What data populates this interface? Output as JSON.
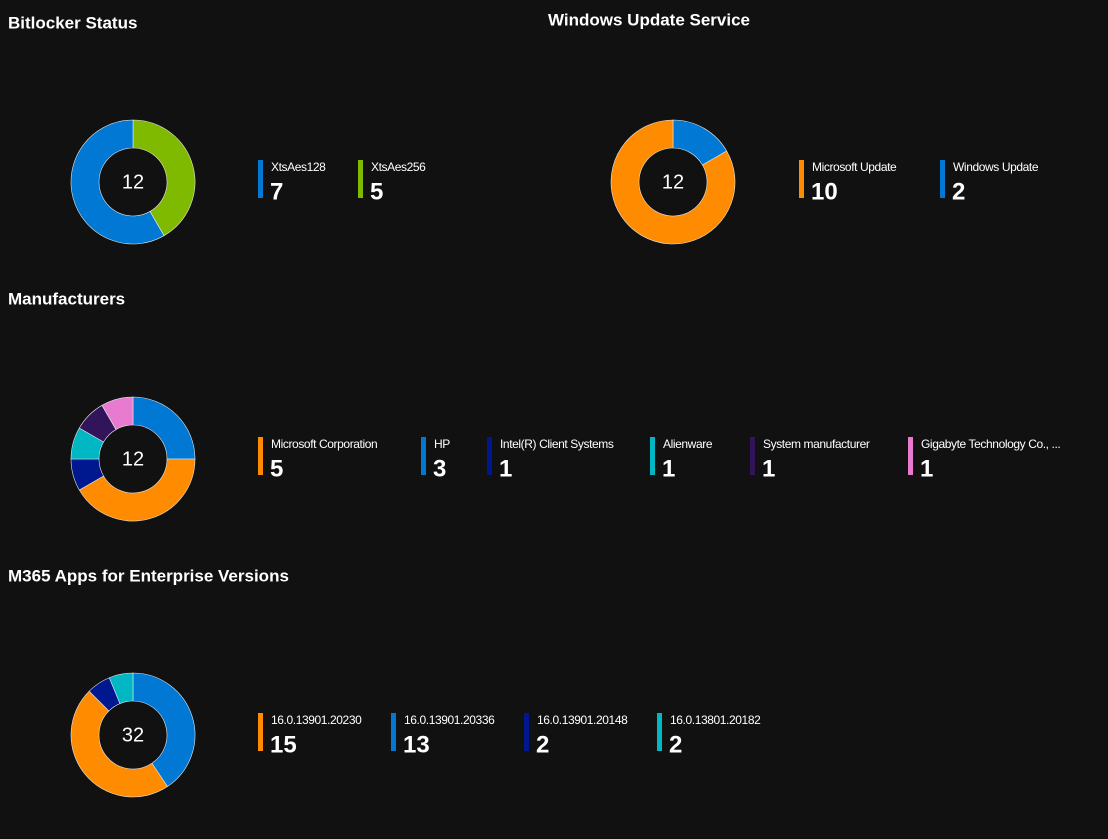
{
  "chart_data": [
    {
      "type": "donut",
      "title": "Bitlocker Status",
      "total": 12,
      "categories": [
        "XtsAes128",
        "XtsAes256"
      ],
      "values": [
        7,
        5
      ],
      "colors": [
        "#0078d4",
        "#7fba00"
      ]
    },
    {
      "type": "donut",
      "title": "Windows Update Service",
      "total": 12,
      "categories": [
        "Microsoft Update",
        "Windows Update"
      ],
      "values": [
        10,
        2
      ],
      "colors": [
        "#ff8c00",
        "#0078d4"
      ]
    },
    {
      "type": "donut",
      "title": "Manufacturers",
      "total": 12,
      "categories": [
        "Microsoft Corporation",
        "HP",
        "Intel(R) Client Systems",
        "Alienware",
        "System manufacturer",
        "Gigabyte Technology Co., ..."
      ],
      "values": [
        5,
        3,
        1,
        1,
        1,
        1
      ],
      "colors": [
        "#ff8c00",
        "#0078d4",
        "#00188f",
        "#00b7c3",
        "#32145a",
        "#e87bd0"
      ]
    },
    {
      "type": "donut",
      "title": "M365 Apps for Enterprise Versions",
      "total": 32,
      "categories": [
        "16.0.13901.20230",
        "16.0.13901.20336",
        "16.0.13901.20148",
        "16.0.13801.20182"
      ],
      "values": [
        15,
        13,
        2,
        2
      ],
      "colors": [
        "#ff8c00",
        "#0078d4",
        "#00188f",
        "#00b7c3"
      ]
    }
  ]
}
